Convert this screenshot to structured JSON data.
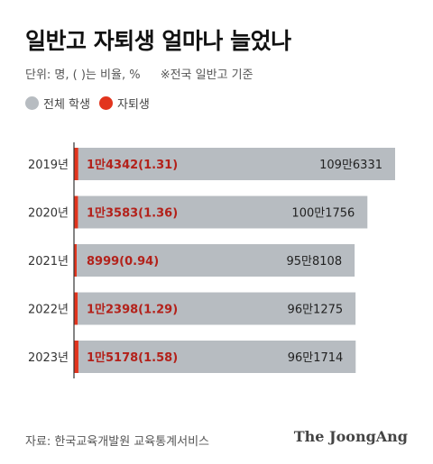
{
  "title": "일반고 자퇴생 얼마나 늘었나",
  "unit_note": "단위: 명, ( )는 비율, %",
  "scope_note": "※전국 일반고 기준",
  "legend": {
    "total_label": "전체 학생",
    "dropout_label": "자퇴생"
  },
  "colors": {
    "total": "#b7bcc1",
    "dropout": "#e2341d",
    "dropout_text": "#b3211a"
  },
  "source": "자료: 한국교육개발원 교육통계서비스",
  "brand": "The JoongAng",
  "chart_data": {
    "type": "bar",
    "orientation": "horizontal",
    "categories": [
      "2019년",
      "2020년",
      "2021년",
      "2022년",
      "2023년"
    ],
    "series": [
      {
        "name": "전체 학생",
        "values": [
          1096331,
          1001756,
          958108,
          961275,
          961714
        ],
        "labels": [
          "109만6331",
          "100만1756",
          "95만8108",
          "96만1275",
          "96만1714"
        ]
      },
      {
        "name": "자퇴생",
        "values": [
          14342,
          13583,
          8999,
          12398,
          15178
        ],
        "rates": [
          1.31,
          1.36,
          0.94,
          1.29,
          1.58
        ],
        "labels": [
          "1만4342(1.31)",
          "1만3583(1.36)",
          "8999(0.94)",
          "1만2398(1.29)",
          "1만5178(1.58)"
        ]
      }
    ]
  }
}
